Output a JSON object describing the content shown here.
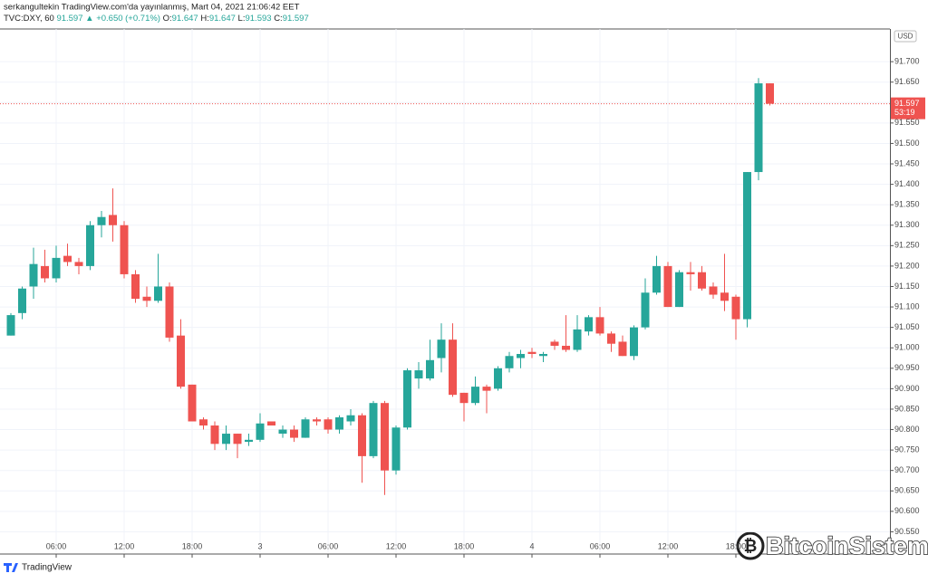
{
  "header": {
    "line1": "serkangultekin TradingView.com'da yayınlanmış, Mart 04, 2021 21:06:42 EET",
    "symbol": "TVC:DXY, 60",
    "price": "91.597",
    "arrow": "▲",
    "change": "+0.650 (+0.71%)",
    "ohlc": [
      {
        "key": "O:",
        "val": "91.647"
      },
      {
        "key": "H:",
        "val": "91.647"
      },
      {
        "key": "L:",
        "val": "91.593"
      },
      {
        "key": "C:",
        "val": "91.597"
      }
    ]
  },
  "footer": {
    "brand": "TradingView",
    "watermark": "BitcoinSistemi"
  },
  "chart_data": {
    "type": "candlestick",
    "categories": [
      null,
      null,
      null,
      null,
      null,
      null,
      null,
      null,
      null,
      null,
      null,
      null,
      null,
      null,
      null,
      null,
      null,
      null,
      null,
      null,
      null,
      null,
      null,
      null,
      null,
      null,
      null,
      null,
      null,
      null,
      null,
      null,
      null,
      null,
      null,
      null,
      null,
      null,
      null,
      null,
      null,
      null,
      null,
      null,
      null,
      null,
      null,
      null,
      null,
      null,
      null,
      null,
      null,
      null,
      null,
      null,
      null,
      null,
      null,
      null,
      null,
      null,
      null,
      null,
      null,
      null,
      null,
      null
    ],
    "open": [
      91.03,
      91.085,
      91.15,
      91.2,
      91.17,
      91.225,
      91.21,
      91.2,
      91.3,
      91.325,
      91.3,
      91.18,
      91.125,
      91.115,
      91.15,
      91.03,
      90.91,
      90.825,
      90.81,
      90.765,
      90.79,
      90.77,
      90.775,
      90.82,
      90.79,
      90.8,
      90.78,
      90.825,
      90.825,
      90.8,
      90.82,
      90.835,
      90.735,
      90.865,
      90.7,
      90.805,
      90.925,
      90.925,
      90.975,
      91.02,
      90.89,
      90.865,
      90.905,
      90.9,
      90.95,
      90.975,
      90.99,
      90.98,
      91.015,
      91.005,
      90.995,
      91.04,
      91.075,
      91.035,
      91.015,
      90.98,
      91.05,
      91.135,
      91.2,
      91.1,
      91.185,
      91.185,
      91.15,
      91.135,
      91.125,
      91.07,
      91.43,
      91.647
    ],
    "high": [
      91.085,
      91.15,
      91.245,
      91.24,
      91.25,
      91.255,
      91.22,
      91.31,
      91.335,
      91.39,
      91.31,
      91.19,
      91.15,
      91.23,
      91.16,
      91.07,
      90.91,
      90.83,
      90.82,
      90.81,
      90.79,
      90.79,
      90.84,
      90.82,
      90.81,
      90.81,
      90.83,
      90.83,
      90.83,
      90.835,
      90.85,
      90.84,
      90.87,
      90.87,
      90.81,
      90.95,
      90.965,
      91.02,
      91.06,
      91.06,
      90.89,
      90.93,
      90.91,
      90.955,
      90.99,
      90.995,
      91.0,
      90.99,
      91.02,
      91.08,
      91.08,
      91.08,
      91.1,
      91.04,
      91.03,
      91.055,
      91.17,
      91.225,
      91.21,
      91.19,
      91.21,
      91.2,
      91.16,
      91.23,
      91.13,
      91.43,
      91.66,
      91.647
    ],
    "low": [
      91.03,
      91.07,
      91.12,
      91.16,
      91.16,
      91.2,
      91.18,
      91.19,
      91.27,
      91.26,
      91.17,
      91.11,
      91.1,
      91.11,
      91.015,
      90.9,
      90.82,
      90.8,
      90.75,
      90.75,
      90.73,
      90.76,
      90.77,
      90.81,
      90.78,
      90.77,
      90.78,
      90.81,
      90.79,
      90.79,
      90.81,
      90.67,
      90.73,
      90.64,
      90.69,
      90.8,
      90.9,
      90.92,
      90.94,
      90.88,
      90.82,
      90.86,
      90.84,
      90.895,
      90.94,
      90.95,
      90.975,
      90.965,
      90.995,
      90.99,
      90.99,
      91.03,
      91.03,
      90.99,
      90.98,
      90.97,
      91.045,
      91.13,
      91.1,
      91.1,
      91.14,
      91.14,
      91.12,
      91.09,
      91.02,
      91.05,
      91.41,
      91.593
    ],
    "close": [
      91.08,
      91.145,
      91.205,
      91.17,
      91.22,
      91.21,
      91.2,
      91.3,
      91.32,
      91.3,
      91.18,
      91.12,
      91.115,
      91.15,
      91.025,
      90.905,
      90.82,
      90.81,
      90.765,
      90.79,
      90.765,
      90.775,
      90.815,
      90.81,
      90.8,
      90.78,
      90.825,
      90.82,
      90.8,
      90.83,
      90.835,
      90.735,
      90.865,
      90.7,
      90.805,
      90.945,
      90.945,
      90.97,
      91.02,
      90.885,
      90.865,
      90.905,
      90.895,
      90.95,
      90.98,
      90.985,
      90.985,
      90.985,
      91.005,
      90.995,
      91.045,
      91.075,
      91.035,
      91.01,
      90.98,
      91.05,
      91.135,
      91.2,
      91.1,
      91.185,
      91.18,
      91.145,
      91.13,
      91.115,
      91.07,
      91.43,
      91.647,
      91.597
    ],
    "up_color": "#26a69a",
    "down_color": "#ef5350",
    "last_price": 91.597,
    "countdown": "53:19",
    "currency": "USD",
    "xlim": [
      -0.96,
      77.6
    ],
    "xticks": [
      {
        "value": 4,
        "label": "06:00"
      },
      {
        "value": 10,
        "label": "12:00"
      },
      {
        "value": 16,
        "label": "18:00"
      },
      {
        "value": 22,
        "label": "3"
      },
      {
        "value": 28,
        "label": "06:00"
      },
      {
        "value": 34,
        "label": "12:00"
      },
      {
        "value": 40,
        "label": "18:00"
      },
      {
        "value": 46,
        "label": "4"
      },
      {
        "value": 52,
        "label": "06:00"
      },
      {
        "value": 58,
        "label": "12:00"
      },
      {
        "value": 64,
        "label": "18:00"
      }
    ],
    "ylim": [
      90.5,
      91.78
    ],
    "yticks": [
      {
        "value": 90.55,
        "label": "90.550"
      },
      {
        "value": 90.6,
        "label": "90.600"
      },
      {
        "value": 90.65,
        "label": "90.650"
      },
      {
        "value": 90.7,
        "label": "90.700"
      },
      {
        "value": 90.75,
        "label": "90.750"
      },
      {
        "value": 90.8,
        "label": "90.800"
      },
      {
        "value": 90.85,
        "label": "90.850"
      },
      {
        "value": 90.9,
        "label": "90.900"
      },
      {
        "value": 90.95,
        "label": "90.950"
      },
      {
        "value": 91.0,
        "label": "91.000"
      },
      {
        "value": 91.05,
        "label": "91.050"
      },
      {
        "value": 91.1,
        "label": "91.100"
      },
      {
        "value": 91.15,
        "label": "91.150"
      },
      {
        "value": 91.2,
        "label": "91.200"
      },
      {
        "value": 91.25,
        "label": "91.250"
      },
      {
        "value": 91.3,
        "label": "91.300"
      },
      {
        "value": 91.35,
        "label": "91.350"
      },
      {
        "value": 91.4,
        "label": "91.400"
      },
      {
        "value": 91.45,
        "label": "91.450"
      },
      {
        "value": 91.5,
        "label": "91.500"
      },
      {
        "value": 91.55,
        "label": "91.550"
      },
      {
        "value": 91.6,
        "label": "91.600"
      },
      {
        "value": 91.65,
        "label": "91.650"
      },
      {
        "value": 91.7,
        "label": "91.700"
      }
    ],
    "grid": true
  }
}
